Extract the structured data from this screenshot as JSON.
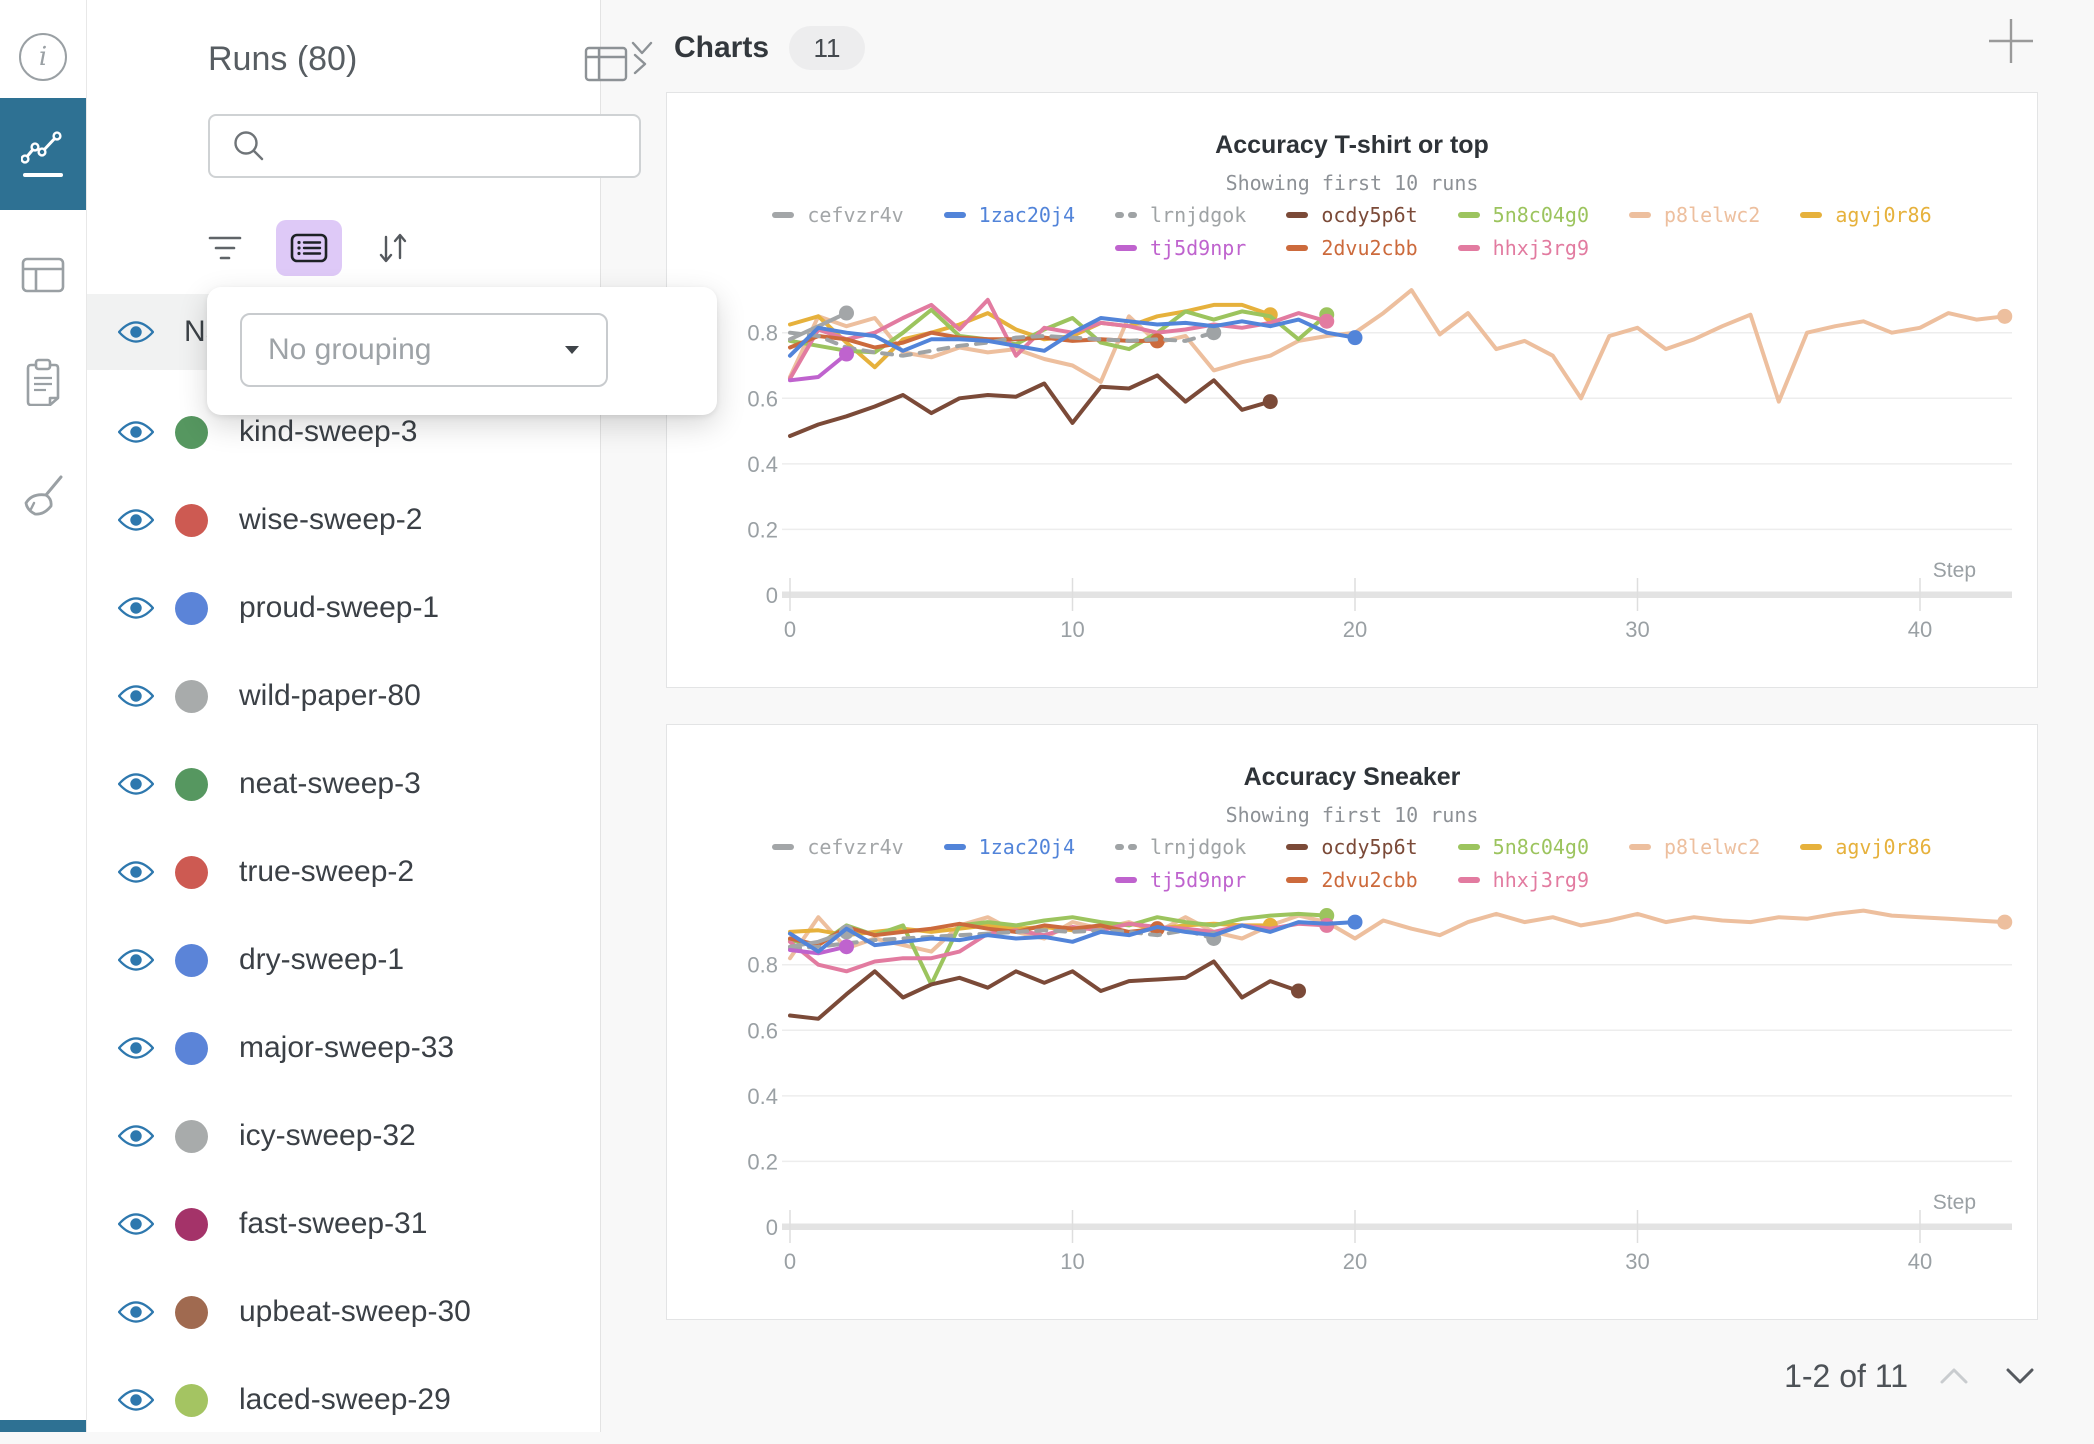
{
  "rail": {
    "items": [
      "info",
      "charts",
      "table",
      "notes",
      "sweep-clean"
    ]
  },
  "sidebar": {
    "title": "Runs (80)",
    "search": {
      "placeholder": ""
    },
    "grouping_popup": {
      "select_placeholder": "No grouping"
    },
    "header_row": {
      "label": "Name"
    },
    "runs": [
      {
        "name": "kind-sweep-3",
        "color": "#569760"
      },
      {
        "name": "wise-sweep-2",
        "color": "#cd5a52"
      },
      {
        "name": "proud-sweep-1",
        "color": "#5b84d8"
      },
      {
        "name": "wild-paper-80",
        "color": "#a8abab"
      },
      {
        "name": "neat-sweep-3",
        "color": "#569760"
      },
      {
        "name": "true-sweep-2",
        "color": "#cd5a52"
      },
      {
        "name": "dry-sweep-1",
        "color": "#5b84d8"
      },
      {
        "name": "major-sweep-33",
        "color": "#5b84d8"
      },
      {
        "name": "icy-sweep-32",
        "color": "#a8abab"
      },
      {
        "name": "fast-sweep-31",
        "color": "#a43369"
      },
      {
        "name": "upbeat-sweep-30",
        "color": "#a06a50"
      },
      {
        "name": "laced-sweep-29",
        "color": "#a4c462"
      }
    ]
  },
  "main": {
    "section_title": "Charts",
    "count_badge": "11",
    "pagination": {
      "label": "1-2 of 11"
    }
  },
  "charts": [
    {
      "type": "line",
      "title": "Accuracy T-shirt or top",
      "subtitle": "Showing first 10 runs",
      "xlabel": "Step",
      "x_ticks": [
        0,
        10,
        20,
        30,
        40
      ],
      "y_ticks": [
        0,
        0.2,
        0.4,
        0.6,
        0.8
      ],
      "ylim": [
        0,
        0.97
      ],
      "xlim": [
        0,
        44
      ],
      "legend_rows": [
        [
          "cefvzr4v",
          "1zac20j4",
          "lrnjdgok",
          "ocdy5p6t",
          "5n8c04g0",
          "p8lelwc2",
          "agvj0r86"
        ],
        [
          "tj5d9npr",
          "2dvu2cbb",
          "hhxj3rg9"
        ]
      ],
      "series": [
        {
          "id": "p8lelwc2",
          "color": "#edbf9e",
          "dash": false,
          "values": [
            0.665,
            0.85,
            0.82,
            0.845,
            0.74,
            0.725,
            0.755,
            0.74,
            0.75,
            0.72,
            0.7,
            0.65,
            0.85,
            0.77,
            0.79,
            0.685,
            0.71,
            0.73,
            0.775,
            0.79,
            0.8,
            0.86,
            0.93,
            0.795,
            0.86,
            0.75,
            0.775,
            0.73,
            0.6,
            0.79,
            0.815,
            0.75,
            0.78,
            0.82,
            0.855,
            0.59,
            0.8,
            0.82,
            0.835,
            0.8,
            0.815,
            0.86,
            0.84,
            0.85
          ]
        },
        {
          "id": "agvj0r86",
          "color": "#e6b13c",
          "dash": false,
          "values": [
            0.825,
            0.85,
            0.77,
            0.695,
            0.78,
            0.8,
            0.825,
            0.86,
            0.81,
            0.78,
            0.79,
            0.83,
            0.82,
            0.85,
            0.865,
            0.885,
            0.885,
            0.855
          ]
        },
        {
          "id": "5n8c04g0",
          "color": "#9cc45e",
          "dash": false,
          "values": [
            0.775,
            0.76,
            0.745,
            0.74,
            0.8,
            0.87,
            0.79,
            0.78,
            0.765,
            0.81,
            0.845,
            0.77,
            0.75,
            0.8,
            0.865,
            0.84,
            0.865,
            0.85,
            0.78,
            0.855
          ]
        },
        {
          "id": "hhxj3rg9",
          "color": "#e27ba0",
          "dash": false,
          "values": [
            0.66,
            0.81,
            0.78,
            0.8,
            0.845,
            0.885,
            0.81,
            0.9,
            0.73,
            0.815,
            0.8,
            0.83,
            0.82,
            0.8,
            0.81,
            0.825,
            0.815,
            0.83,
            0.86,
            0.835
          ]
        },
        {
          "id": "2dvu2cbb",
          "color": "#cc6a3c",
          "dash": false,
          "values": [
            0.755,
            0.79,
            0.78,
            0.755,
            0.77,
            0.8,
            0.785,
            0.78,
            0.78,
            0.785,
            0.775,
            0.78,
            0.775,
            0.775
          ]
        },
        {
          "id": "lrnjdgok",
          "color": "#9fa3a5",
          "dash": true,
          "values": [
            0.8,
            0.79,
            0.755,
            0.74,
            0.73,
            0.745,
            0.76,
            0.77,
            0.785,
            0.79,
            0.785,
            0.78,
            0.775,
            0.78,
            0.775,
            0.8
          ]
        },
        {
          "id": "ocdy5p6t",
          "color": "#7b4a38",
          "dash": false,
          "values": [
            0.485,
            0.52,
            0.545,
            0.575,
            0.61,
            0.555,
            0.6,
            0.61,
            0.605,
            0.645,
            0.525,
            0.635,
            0.63,
            0.67,
            0.59,
            0.655,
            0.565,
            0.59
          ]
        },
        {
          "id": "cefvzr4v",
          "color": "#a3a6a8",
          "dash": false,
          "values": [
            0.78,
            0.82,
            0.86
          ]
        },
        {
          "id": "tj5d9npr",
          "color": "#bf63ce",
          "dash": false,
          "values": [
            0.655,
            0.665,
            0.735
          ]
        },
        {
          "id": "1zac20j4",
          "color": "#5284d9",
          "dash": false,
          "values": [
            0.73,
            0.815,
            0.8,
            0.79,
            0.745,
            0.78,
            0.78,
            0.775,
            0.76,
            0.745,
            0.8,
            0.845,
            0.835,
            0.825,
            0.83,
            0.82,
            0.835,
            0.82,
            0.84,
            0.8,
            0.785
          ]
        }
      ]
    },
    {
      "type": "line",
      "title": "Accuracy Sneaker",
      "subtitle": "Showing first 10 runs",
      "xlabel": "Step",
      "x_ticks": [
        0,
        10,
        20,
        30,
        40
      ],
      "y_ticks": [
        0,
        0.2,
        0.4,
        0.6,
        0.8
      ],
      "ylim": [
        0,
        0.97
      ],
      "xlim": [
        0,
        44
      ],
      "legend_rows": [
        [
          "cefvzr4v",
          "1zac20j4",
          "lrnjdgok",
          "ocdy5p6t",
          "5n8c04g0",
          "p8lelwc2",
          "agvj0r86"
        ],
        [
          "tj5d9npr",
          "2dvu2cbb",
          "hhxj3rg9"
        ]
      ],
      "series": [
        {
          "id": "p8lelwc2",
          "color": "#edbf9e",
          "dash": false,
          "values": [
            0.82,
            0.945,
            0.85,
            0.88,
            0.86,
            0.84,
            0.92,
            0.945,
            0.9,
            0.88,
            0.93,
            0.91,
            0.93,
            0.9,
            0.945,
            0.9,
            0.88,
            0.92,
            0.95,
            0.93,
            0.88,
            0.935,
            0.91,
            0.89,
            0.93,
            0.955,
            0.93,
            0.945,
            0.92,
            0.935,
            0.955,
            0.93,
            0.945,
            0.935,
            0.93,
            0.945,
            0.94,
            0.955,
            0.965,
            0.95,
            0.945,
            0.94,
            0.935,
            0.93
          ]
        },
        {
          "id": "agvj0r86",
          "color": "#e6b13c",
          "dash": false,
          "values": [
            0.9,
            0.905,
            0.89,
            0.9,
            0.91,
            0.9,
            0.91,
            0.92,
            0.91,
            0.915,
            0.905,
            0.915,
            0.925,
            0.91,
            0.92,
            0.925,
            0.92,
            0.92
          ]
        },
        {
          "id": "5n8c04g0",
          "color": "#9cc45e",
          "dash": false,
          "values": [
            0.875,
            0.86,
            0.92,
            0.89,
            0.92,
            0.74,
            0.92,
            0.93,
            0.92,
            0.935,
            0.945,
            0.93,
            0.92,
            0.945,
            0.93,
            0.92,
            0.94,
            0.95,
            0.955,
            0.95
          ]
        },
        {
          "id": "hhxj3rg9",
          "color": "#e27ba0",
          "dash": false,
          "values": [
            0.87,
            0.8,
            0.78,
            0.81,
            0.82,
            0.82,
            0.84,
            0.895,
            0.905,
            0.89,
            0.915,
            0.905,
            0.925,
            0.915,
            0.91,
            0.9,
            0.92,
            0.91,
            0.925,
            0.92
          ]
        },
        {
          "id": "2dvu2cbb",
          "color": "#cc6a3c",
          "dash": false,
          "values": [
            0.88,
            0.86,
            0.915,
            0.89,
            0.9,
            0.91,
            0.925,
            0.91,
            0.9,
            0.92,
            0.91,
            0.92,
            0.9,
            0.91
          ]
        },
        {
          "id": "lrnjdgok",
          "color": "#9fa3a5",
          "dash": true,
          "values": [
            0.85,
            0.855,
            0.865,
            0.875,
            0.88,
            0.885,
            0.89,
            0.895,
            0.9,
            0.905,
            0.9,
            0.905,
            0.9,
            0.89,
            0.905,
            0.88
          ]
        },
        {
          "id": "ocdy5p6t",
          "color": "#7b4a38",
          "dash": false,
          "values": [
            0.645,
            0.635,
            0.71,
            0.78,
            0.7,
            0.74,
            0.76,
            0.73,
            0.78,
            0.745,
            0.78,
            0.72,
            0.75,
            0.755,
            0.76,
            0.81,
            0.7,
            0.75,
            0.72
          ]
        },
        {
          "id": "cefvzr4v",
          "color": "#a3a6a8",
          "dash": false,
          "values": [
            0.855,
            0.87,
            0.9
          ]
        },
        {
          "id": "tj5d9npr",
          "color": "#bf63ce",
          "dash": false,
          "values": [
            0.845,
            0.835,
            0.855
          ]
        },
        {
          "id": "1zac20j4",
          "color": "#5284d9",
          "dash": false,
          "values": [
            0.895,
            0.84,
            0.91,
            0.86,
            0.87,
            0.88,
            0.875,
            0.89,
            0.88,
            0.885,
            0.87,
            0.9,
            0.89,
            0.915,
            0.9,
            0.89,
            0.92,
            0.9,
            0.93,
            0.925,
            0.93
          ]
        }
      ]
    }
  ]
}
